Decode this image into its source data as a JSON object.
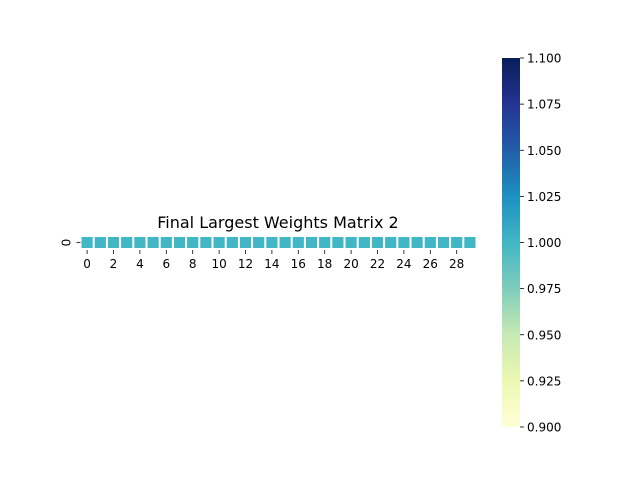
{
  "chart_data": {
    "type": "heatmap",
    "title": "Final Largest Weights Matrix 2",
    "xlabel": "",
    "ylabel": "",
    "rows": [
      "0"
    ],
    "columns": 30,
    "x_tick_labels": [
      "0",
      "2",
      "4",
      "6",
      "8",
      "10",
      "12",
      "14",
      "16",
      "18",
      "20",
      "22",
      "24",
      "26",
      "28"
    ],
    "y_tick_labels": [
      "0"
    ],
    "values": [
      [
        1.0,
        1.0,
        1.0,
        1.0,
        1.0,
        1.0,
        1.0,
        1.0,
        1.0,
        1.0,
        1.0,
        1.0,
        1.0,
        1.0,
        1.0,
        1.0,
        1.0,
        1.0,
        1.0,
        1.0,
        1.0,
        1.0,
        1.0,
        1.0,
        1.0,
        1.0,
        1.0,
        1.0,
        1.0,
        1.0
      ]
    ],
    "colormap": "YlGnBu",
    "colorbar": {
      "range": [
        0.9,
        1.1
      ],
      "tick_labels": [
        "0.900",
        "0.925",
        "0.950",
        "0.975",
        "1.000",
        "1.025",
        "1.050",
        "1.075",
        "1.100"
      ],
      "stops": [
        "#ffffd9",
        "#edf8b1",
        "#c7e9b4",
        "#7fcdbb",
        "#41b6c4",
        "#1d91c0",
        "#225ea8",
        "#253494",
        "#081d58"
      ]
    }
  }
}
